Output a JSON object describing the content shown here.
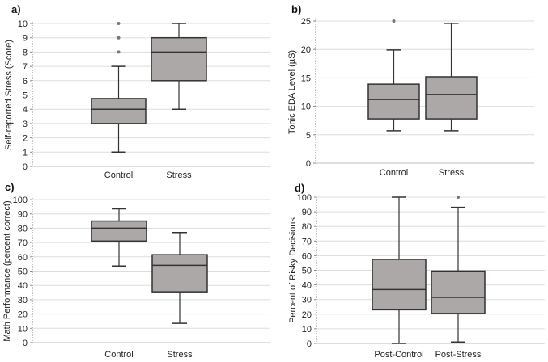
{
  "chart_data": [
    {
      "type": "box",
      "panel_label": "a)",
      "ylabel": "Self-reported Stress  (Score)",
      "ylim": [
        0,
        10
      ],
      "yticks": [
        0,
        1,
        2,
        3,
        4,
        5,
        6,
        7,
        8,
        9,
        10
      ],
      "grid": true,
      "categories": [
        "Control",
        "Stress"
      ],
      "boxes": [
        {
          "min": 1,
          "q1": 3,
          "median": 4,
          "q3": 4.75,
          "max": 7,
          "outliers": [
            8,
            9,
            10
          ]
        },
        {
          "min": 4,
          "q1": 6,
          "median": 8,
          "q3": 9,
          "max": 10,
          "outliers": []
        }
      ]
    },
    {
      "type": "box",
      "panel_label": "b)",
      "ylabel": "Tonic EDA Level (µS)",
      "ylim": [
        0,
        25
      ],
      "yticks": [
        0,
        5,
        10,
        15,
        20,
        25
      ],
      "grid": true,
      "categories": [
        "Control",
        "Stress"
      ],
      "boxes": [
        {
          "min": 5.7,
          "q1": 7.8,
          "median": 11.2,
          "q3": 13.9,
          "max": 19.9,
          "outliers": [
            25
          ]
        },
        {
          "min": 5.7,
          "q1": 7.8,
          "median": 12.1,
          "q3": 15.2,
          "max": 24.6,
          "outliers": []
        }
      ]
    },
    {
      "type": "box",
      "panel_label": "c)",
      "ylabel": "Math Performance (percent correct)",
      "ylim": [
        0,
        100
      ],
      "yticks": [
        0,
        10,
        20,
        30,
        40,
        50,
        60,
        70,
        80,
        90,
        100
      ],
      "grid": true,
      "categories": [
        "Control",
        "Stress"
      ],
      "boxes": [
        {
          "min": 53.5,
          "q1": 71,
          "median": 80,
          "q3": 85,
          "max": 93.5,
          "outliers": []
        },
        {
          "min": 13.5,
          "q1": 35.5,
          "median": 54,
          "q3": 61.5,
          "max": 77,
          "outliers": []
        }
      ]
    },
    {
      "type": "box",
      "panel_label": "d)",
      "ylabel": "Percent of Risky Decisions",
      "ylim": [
        0,
        100
      ],
      "yticks": [
        0,
        10,
        20,
        30,
        40,
        50,
        60,
        70,
        80,
        90,
        100
      ],
      "grid": true,
      "categories": [
        "Post-Control",
        "Post-Stress"
      ],
      "boxes": [
        {
          "min": 0,
          "q1": 23,
          "median": 36.8,
          "q3": 57.5,
          "max": 100,
          "outliers": []
        },
        {
          "min": 1,
          "q1": 20.5,
          "median": 31.5,
          "q3": 49.5,
          "max": 93,
          "outliers": [
            100
          ]
        }
      ]
    }
  ],
  "colors": {
    "box_fill": "#aba8a7",
    "stroke": "#333333",
    "grid": "#dddddd",
    "outlier": "#777777"
  }
}
